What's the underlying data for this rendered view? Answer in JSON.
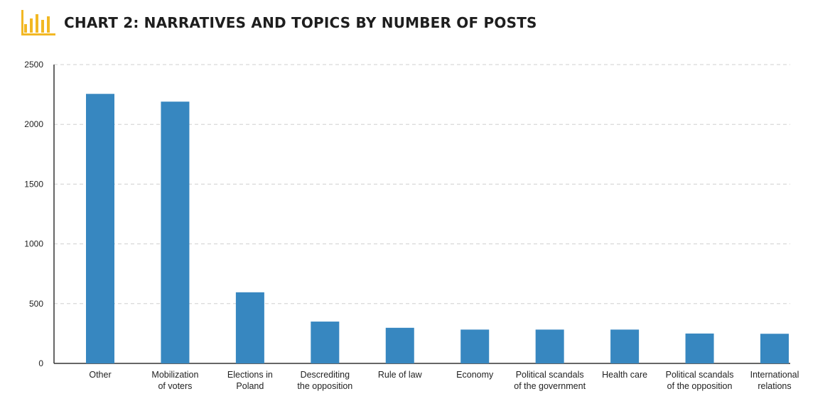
{
  "header": {
    "title": "CHART 2: NARRATIVES AND TOPICS BY NUMBER OF POSTS",
    "icon": "bar-chart-icon",
    "icon_color": "#f2b824"
  },
  "chart_data": {
    "type": "bar",
    "title": "CHART 2: NARRATIVES AND TOPICS BY NUMBER OF POSTS",
    "categories": [
      [
        "Other"
      ],
      [
        "Mobilization",
        "of voters"
      ],
      [
        "Elections in",
        "Poland"
      ],
      [
        "Descrediting",
        "the opposition"
      ],
      [
        "Rule of law"
      ],
      [
        "Economy"
      ],
      [
        "Political scandals",
        "of the government"
      ],
      [
        "Health care"
      ],
      [
        "Political scandals",
        "of the opposition"
      ],
      [
        "International",
        "relations"
      ]
    ],
    "values": [
      2255,
      2190,
      595,
      350,
      298,
      283,
      283,
      283,
      250,
      248
    ],
    "ylim": [
      0,
      2500
    ],
    "yticks": [
      "0",
      "500",
      "1000",
      "1500",
      "2000",
      "2500"
    ],
    "ytick_values": [
      0,
      500,
      1000,
      1500,
      2000,
      2500
    ],
    "grid": true,
    "bar_color": "#3787c0",
    "xlabel": "",
    "ylabel": ""
  }
}
